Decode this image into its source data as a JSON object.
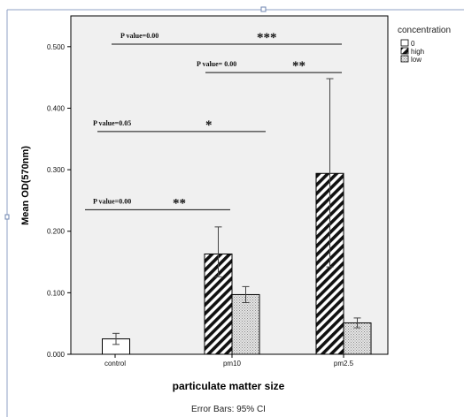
{
  "chart_data": {
    "type": "bar",
    "title": "",
    "xlabel": "particulate matter size",
    "ylabel": "Mean OD(570nm)",
    "ylim": [
      0,
      0.55
    ],
    "yticks": [
      "0.000",
      "0.100",
      "0.200",
      "0.300",
      "0.400",
      "0.500"
    ],
    "categories": [
      "control",
      "pm10",
      "pm2.5"
    ],
    "legend": {
      "title": "concentration",
      "placement": "top-right-outside",
      "entries": [
        "0",
        "high",
        "low"
      ]
    },
    "series": [
      {
        "name": "0",
        "pattern": "white",
        "values": [
          0.025,
          null,
          null
        ],
        "ci_low": [
          0.016,
          null,
          null
        ],
        "ci_high": [
          0.034,
          null,
          null
        ]
      },
      {
        "name": "high",
        "pattern": "diagonal-hatch",
        "values": [
          null,
          0.163,
          0.294
        ],
        "ci_low": [
          null,
          0.126,
          0.142
        ],
        "ci_high": [
          null,
          0.207,
          0.448
        ]
      },
      {
        "name": "low",
        "pattern": "dotted",
        "values": [
          null,
          0.097,
          0.051
        ],
        "ci_low": [
          null,
          0.084,
          0.043
        ],
        "ci_high": [
          null,
          0.11,
          0.059
        ]
      }
    ],
    "footnote": "Error Bars: 95% CI",
    "annotations": [
      {
        "p_text": "P value=0.00",
        "stars": "***",
        "from": "control",
        "to": "pm2.5",
        "y": 0.504
      },
      {
        "p_text": "P value= 0.00",
        "stars": "**",
        "from": "pm10",
        "to": "pm2.5",
        "y": 0.458
      },
      {
        "p_text": "P value=0.05",
        "stars": "*",
        "from": "control",
        "to": "pm10",
        "y": 0.362
      },
      {
        "p_text": "P value=0.00",
        "stars": "**",
        "from": "control",
        "to": "pm10",
        "y": 0.235
      }
    ],
    "colors": {
      "plot_background": "#f0f0f0",
      "bar_stroke": "#000000"
    }
  }
}
